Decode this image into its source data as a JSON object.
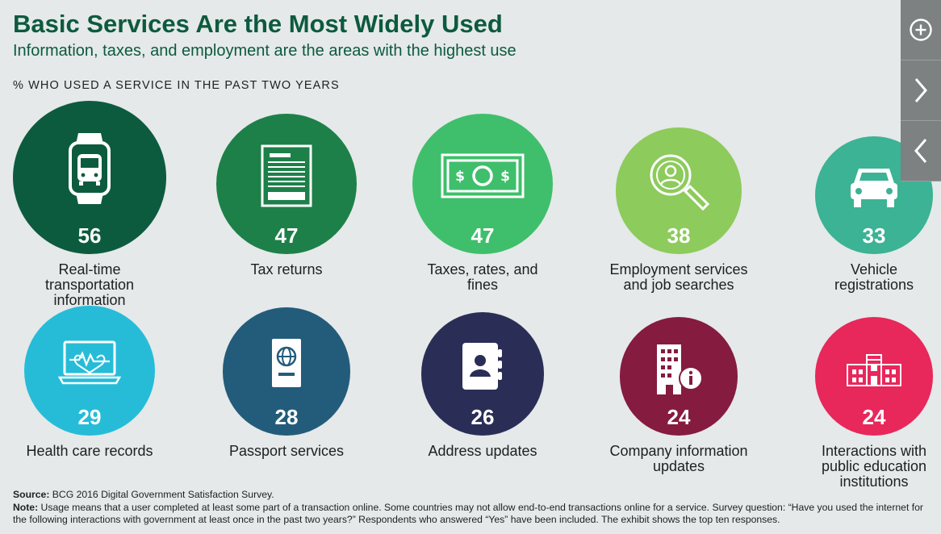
{
  "header": {
    "title": "Basic Services Are the Most Widely Used",
    "subtitle": "Information, taxes, and employment are the areas with the highest use",
    "metric": "% WHO USED A SERVICE IN THE PAST TWO YEARS"
  },
  "nav": {
    "zoom_icon": "plus-circle-icon",
    "next_icon": "chevron-right-icon",
    "prev_icon": "chevron-left-icon"
  },
  "chart_data": {
    "type": "bubble",
    "title": "Basic Services Are the Most Widely Used",
    "unit": "% who used a service in the past two years",
    "items": [
      {
        "label": "Real-time transportation information",
        "value": 56,
        "color": "#0d5b3f",
        "icon": "smartwatch-bus-icon"
      },
      {
        "label": "Tax returns",
        "value": 47,
        "color": "#1d8048",
        "icon": "document-form-icon"
      },
      {
        "label": "Taxes, rates, and fines",
        "value": 47,
        "color": "#3fbf6b",
        "icon": "dollar-bill-icon"
      },
      {
        "label": "Employment services and job searches",
        "value": 38,
        "color": "#8dcb5c",
        "icon": "magnifier-person-icon"
      },
      {
        "label": "Vehicle registrations",
        "value": 33,
        "color": "#3bb394",
        "icon": "car-icon"
      },
      {
        "label": "Health care records",
        "value": 29,
        "color": "#26bcd8",
        "icon": "laptop-heartbeat-icon"
      },
      {
        "label": "Passport services",
        "value": 28,
        "color": "#235c7b",
        "icon": "passport-icon"
      },
      {
        "label": "Address updates",
        "value": 26,
        "color": "#2a2e57",
        "icon": "address-book-icon"
      },
      {
        "label": "Company information updates",
        "value": 24,
        "color": "#851b3f",
        "icon": "building-info-icon"
      },
      {
        "label": "Interactions with public education institutions",
        "value": 24,
        "color": "#e8275b",
        "icon": "school-building-icon"
      }
    ]
  },
  "footer": {
    "source_label": "Source:",
    "source_text": "BCG 2016 Digital Government Satisfaction Survey.",
    "note_label": "Note:",
    "note_text": "Usage means that a user completed at least some part of a transaction online. Some countries may not allow end-to-end transactions online for a service. Survey question: “Have you used the internet for the following interactions with government at least once in the past two years?” Respondents who answered “Yes” have been included. The exhibit shows the top ten responses."
  }
}
